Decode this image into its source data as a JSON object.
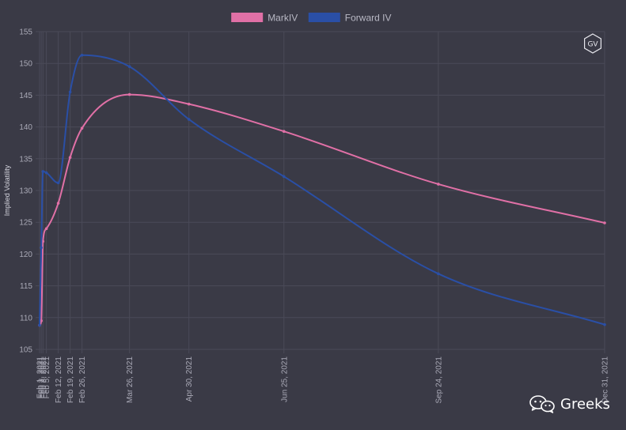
{
  "chart_data": {
    "type": "line",
    "title": "",
    "ylabel": "Implied Volatility",
    "xlabel": "",
    "ylim": [
      105,
      155
    ],
    "y_ticks": [
      105,
      110,
      115,
      120,
      125,
      130,
      135,
      140,
      145,
      150,
      155
    ],
    "grid": true,
    "legend_position": "top-center",
    "x_axis": {
      "type": "date",
      "min": "2021-02-01",
      "max": "2021-12-31",
      "tick_labels": [
        {
          "date": "2021-02-01",
          "label": "Feb 1, 2021"
        },
        {
          "date": "2021-02-02",
          "label": "Feb 2, 2021"
        },
        {
          "date": "2021-02-03",
          "label": "Feb 3, 2021"
        },
        {
          "date": "2021-02-05",
          "label": "Feb 5, 2021"
        },
        {
          "date": "2021-02-12",
          "label": "Feb 12, 2021"
        },
        {
          "date": "2021-02-19",
          "label": "Feb 19, 2021"
        },
        {
          "date": "2021-02-26",
          "label": "Feb 26, 2021"
        },
        {
          "date": "2021-03-26",
          "label": "Mar 26, 2021"
        },
        {
          "date": "2021-04-30",
          "label": "Apr 30, 2021"
        },
        {
          "date": "2021-06-25",
          "label": "Jun 25, 2021"
        },
        {
          "date": "2021-09-24",
          "label": "Sep 24, 2021"
        },
        {
          "date": "2021-12-31",
          "label": "Dec 31, 2021"
        }
      ]
    },
    "series": [
      {
        "name": "MarkIV",
        "color": "#e070a6",
        "points": [
          {
            "x": "2021-02-01",
            "y": 108.8
          },
          {
            "x": "2021-02-02",
            "y": 109.5
          },
          {
            "x": "2021-02-03",
            "y": 122.0
          },
          {
            "x": "2021-02-05",
            "y": 124.0
          },
          {
            "x": "2021-02-12",
            "y": 128.0
          },
          {
            "x": "2021-02-19",
            "y": 135.2
          },
          {
            "x": "2021-02-26",
            "y": 139.8
          },
          {
            "x": "2021-03-26",
            "y": 145.1
          },
          {
            "x": "2021-04-30",
            "y": 143.6
          },
          {
            "x": "2021-06-25",
            "y": 139.3
          },
          {
            "x": "2021-09-24",
            "y": 131.0
          },
          {
            "x": "2021-12-31",
            "y": 124.9
          }
        ]
      },
      {
        "name": "Forward IV",
        "color": "#2a4fa6",
        "points": [
          {
            "x": "2021-02-01",
            "y": 108.8
          },
          {
            "x": "2021-02-02",
            "y": 121.0
          },
          {
            "x": "2021-02-03",
            "y": 133.0
          },
          {
            "x": "2021-02-05",
            "y": 132.8
          },
          {
            "x": "2021-02-12",
            "y": 131.2
          },
          {
            "x": "2021-02-19",
            "y": 145.5
          },
          {
            "x": "2021-02-26",
            "y": 151.3
          },
          {
            "x": "2021-03-26",
            "y": 149.5
          },
          {
            "x": "2021-04-30",
            "y": 141.2
          },
          {
            "x": "2021-06-25",
            "y": 132.2
          },
          {
            "x": "2021-09-24",
            "y": 116.9
          },
          {
            "x": "2021-12-31",
            "y": 108.9
          }
        ]
      }
    ]
  },
  "logo": {
    "text": "GV",
    "icon": "hexagon-logo-icon"
  },
  "watermark": {
    "text": "Greeks",
    "icon": "wechat-icon"
  },
  "colors": {
    "background": "#3a3a46",
    "grid": "#4a4a58",
    "tick_text": "#a9a9b6"
  }
}
